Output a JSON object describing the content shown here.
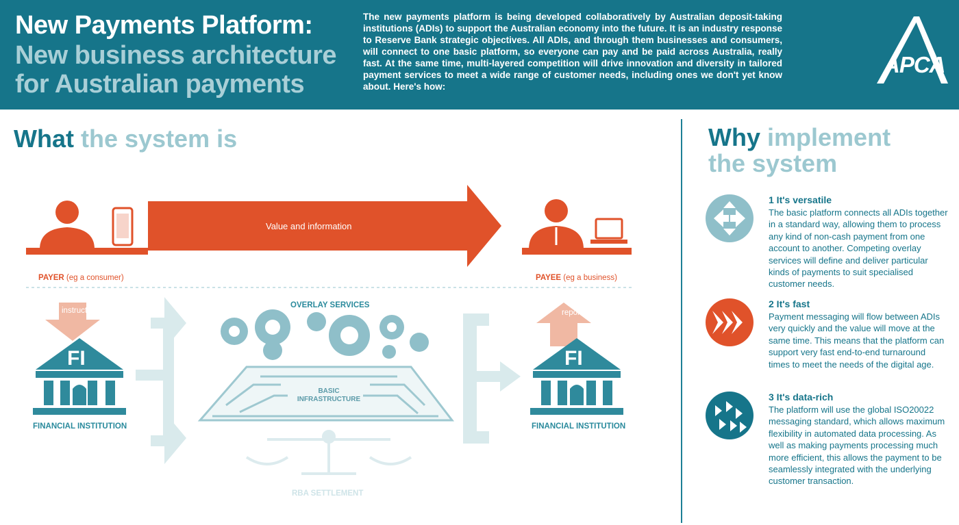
{
  "header": {
    "title_line1": "New Payments Platform:",
    "title_line2": "New business architecture",
    "title_line3": "for Australian payments",
    "intro": "The new payments platform is being developed collaboratively by Australian deposit-taking institutions (ADIs) to support the Australian economy into the future. It is an industry response to Reserve Bank strategic objectives. All ADIs, and through them businesses and consumers, will connect to one basic platform, so everyone can pay and be paid across Australia, really fast. At the same time, multi-layered competition will drive innovation and diversity in tailored payment services to meet a wide range of customer needs, including ones we don't yet know about. Here's how:",
    "logo_text": "APCA"
  },
  "what": {
    "heading_bold": "What",
    "heading_light": "the system is"
  },
  "diagram": {
    "arrow_label": "Value and information",
    "payer_bold": "PAYER",
    "payer_rest": "(eg a consumer)",
    "payee_bold": "PAYEE",
    "payee_rest": "(eg a business)",
    "instructs": "instructs",
    "reports": "reports",
    "fi": "FI",
    "fi_label_left": "FINANCIAL INSTITUTION",
    "fi_label_right": "FINANCIAL INSTITUTION",
    "overlay": "OVERLAY SERVICES",
    "infra_line1": "BASIC",
    "infra_line2": "INFRASTRUCTURE",
    "rba": "RBA SETTLEMENT"
  },
  "why": {
    "heading_bold": "Why",
    "heading_light1": "implement",
    "heading_light2": "the system",
    "reasons": [
      {
        "title": "1 It's versatile",
        "text": "The basic platform connects all ADIs together in a standard way, allowing them to process any kind of non-cash payment from one account to another. Competing overlay services will define and deliver particular kinds of payments to suit specialised customer needs.",
        "icon": "arrows-converge-icon"
      },
      {
        "title": "2 It's fast",
        "text": "Payment messaging will flow between ADIs very quickly and the value will move at the same time. This means that the platform can support very fast end-to-end turnaround times to meet the needs of the digital age.",
        "icon": "fast-forward-icon"
      },
      {
        "title": "3 It's data-rich",
        "text": "The platform will use the global ISO20022 messaging standard, which allows maximum flexibility in automated data processing. As well as making payments processing much more efficient, this allows the payment to be seamlessly integrated with the underlying customer transaction.",
        "icon": "data-arrows-icon"
      }
    ]
  },
  "colors": {
    "teal": "#16758a",
    "light_teal": "#9cc8d0",
    "orange": "#e0522a",
    "pale_teal": "#d7e9ec"
  }
}
